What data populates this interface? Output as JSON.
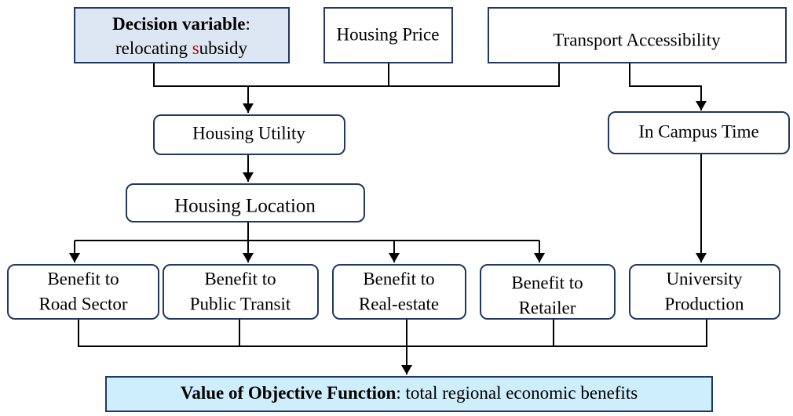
{
  "nodes": [
    {
      "title": "Decision variable",
      "title_suffix": ":",
      "line2": [
        "relocating ",
        "s",
        "ubsidy"
      ]
    },
    {
      "label": "Housing Price"
    },
    {
      "label": "Transport Accessibility"
    },
    {
      "label": "Housing Utility"
    },
    {
      "label": "In Campus Time"
    },
    {
      "label": "Housing Location"
    },
    {
      "lines": [
        "Benefit to",
        "Road Sector"
      ]
    },
    {
      "lines": [
        "Benefit to",
        "Public Transit"
      ]
    },
    {
      "lines": [
        "Benefit to",
        "Real-estate"
      ]
    },
    {
      "lines": [
        "Benefit to",
        "Retailer"
      ]
    },
    {
      "lines": [
        "University",
        "Production"
      ]
    }
  ],
  "objective": {
    "title": "Value of Objective Function",
    "rest": ": total regional economic benefits"
  }
}
